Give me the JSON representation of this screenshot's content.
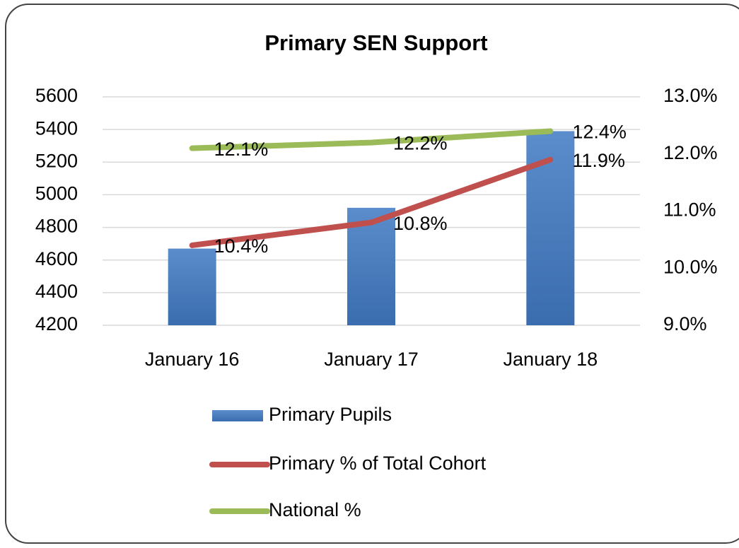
{
  "chart_data": {
    "type": "combo",
    "title": "Primary SEN Support",
    "categories": [
      "January 16",
      "January 17",
      "January 18"
    ],
    "series": [
      {
        "name": "Primary Pupils",
        "type": "bar",
        "color": "#4f81bd",
        "values": [
          4670,
          4920,
          5390
        ]
      },
      {
        "name": "Primary % of Total Cohort",
        "type": "line",
        "axis": "y2",
        "color": "#c0504d",
        "values": [
          10.4,
          10.8,
          11.9
        ],
        "value_labels": [
          "10.4%",
          "10.8%",
          "11.9%"
        ]
      },
      {
        "name": "National %",
        "type": "line",
        "axis": "y2",
        "color": "#9bbb59",
        "values": [
          12.1,
          12.2,
          12.4
        ],
        "value_labels": [
          "12.1%",
          "12.2%",
          "12.4%"
        ]
      }
    ],
    "ylim": [
      4200,
      5600
    ],
    "yticks": [
      4200,
      4400,
      4600,
      4800,
      5000,
      5200,
      5400,
      5600
    ],
    "y2lim": [
      9,
      13
    ],
    "y2ticks": [
      {
        "value": 9,
        "label": "9.0%"
      },
      {
        "value": 10,
        "label": "10.0%"
      },
      {
        "value": 11,
        "label": "11.0%"
      },
      {
        "value": 12,
        "label": "12.0%"
      },
      {
        "value": 13,
        "label": "13.0%"
      }
    ],
    "grid": true,
    "legend": "bottom"
  }
}
